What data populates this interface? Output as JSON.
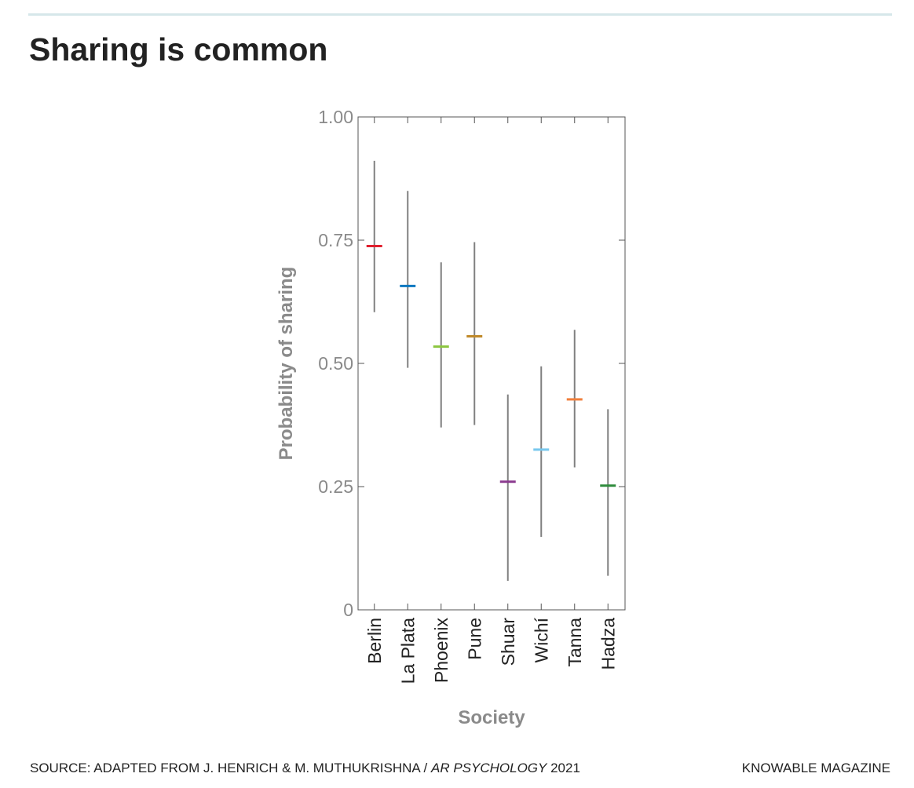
{
  "title": "Sharing is common",
  "footer": {
    "source_prefix": "SOURCE: ADAPTED FROM J. HENRICH & M. MUTHUKRISHNA / ",
    "source_journal": "AR PSYCHOLOGY",
    "source_year": " 2021",
    "brand": "KNOWABLE MAGAZINE"
  },
  "chart_data": {
    "type": "errorbar",
    "xlabel": "Society",
    "ylabel": "Probability of sharing",
    "ylim": [
      0,
      1
    ],
    "yticks": [
      0,
      0.25,
      0.5,
      0.75,
      1.0
    ],
    "ytick_labels": [
      "0",
      "0.25",
      "0.50",
      "0.75",
      "1.00"
    ],
    "categories": [
      "Berlin",
      "La Plata",
      "Phoenix",
      "Pune",
      "Shuar",
      "Wichí",
      "Tanna",
      "Hadza"
    ],
    "values": [
      0.738,
      0.657,
      0.534,
      0.555,
      0.26,
      0.325,
      0.427,
      0.252
    ],
    "lower": [
      0.604,
      0.491,
      0.37,
      0.375,
      0.059,
      0.148,
      0.289,
      0.069
    ],
    "upper": [
      0.911,
      0.85,
      0.705,
      0.746,
      0.437,
      0.494,
      0.568,
      0.407
    ],
    "colors": [
      "#e0202f",
      "#0a78c0",
      "#8cc63f",
      "#c08a2a",
      "#8b3a8f",
      "#78c8ee",
      "#f07f3c",
      "#2e8b3c"
    ],
    "grid": false
  }
}
